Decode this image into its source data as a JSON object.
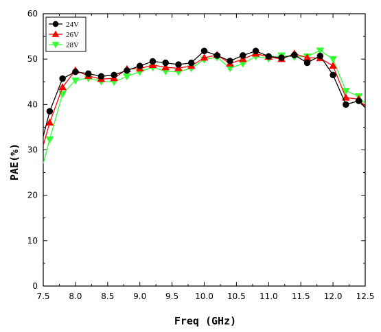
{
  "chart_data": {
    "type": "line",
    "xlabel": "Freq (GHz)",
    "ylabel": "PAE(%)",
    "xlim": [
      7.5,
      12.5
    ],
    "ylim": [
      0,
      60
    ],
    "x_ticks": [
      7.5,
      8.0,
      8.5,
      9.0,
      9.5,
      10.0,
      10.5,
      11.0,
      11.5,
      12.0,
      12.5
    ],
    "x_tick_labels": [
      "7.5",
      "8.0",
      "8.5",
      "9.0",
      "9.5",
      "10.0",
      "10.5",
      "11.0",
      "11.5",
      "12.0",
      "12.5"
    ],
    "y_ticks": [
      0,
      10,
      20,
      30,
      40,
      50,
      60
    ],
    "y_tick_labels": [
      "0",
      "10",
      "20",
      "30",
      "40",
      "50",
      "60"
    ],
    "grid": false,
    "legend_position": "top-left",
    "x": [
      7.5,
      7.6,
      7.8,
      8.0,
      8.2,
      8.4,
      8.6,
      8.8,
      9.0,
      9.2,
      9.4,
      9.6,
      9.8,
      10.0,
      10.2,
      10.4,
      10.6,
      10.8,
      11.0,
      11.2,
      11.4,
      11.6,
      11.8,
      12.0,
      12.2,
      12.4,
      12.5
    ],
    "series": [
      {
        "name": "24V",
        "marker": "circle",
        "color": "#000000",
        "values": [
          33,
          38.5,
          45.7,
          47.2,
          46.8,
          46.2,
          46.5,
          47.5,
          48.5,
          49.5,
          49.2,
          48.8,
          49.2,
          51.8,
          50.8,
          49.6,
          50.8,
          51.8,
          50.6,
          50.3,
          50.9,
          49.2,
          50.7,
          46.5,
          40,
          40.8,
          39.3
        ]
      },
      {
        "name": "26V",
        "marker": "triangle-up",
        "color": "#ff0000",
        "values": [
          31,
          36,
          43.8,
          47.5,
          46.3,
          45.6,
          45.8,
          47.8,
          47.9,
          48.7,
          48.2,
          48,
          48.5,
          50.3,
          50.9,
          49,
          50,
          51.2,
          50.5,
          50,
          51.2,
          50.3,
          50.2,
          48.5,
          41.5,
          41.2,
          39.6
        ]
      },
      {
        "name": "28V",
        "marker": "triangle-down",
        "color": "#33ff33",
        "values": [
          27,
          32.3,
          42.3,
          45.3,
          45.8,
          45.1,
          45,
          46.2,
          47.2,
          48.2,
          47.3,
          47.2,
          48,
          49.9,
          50.4,
          48,
          49,
          50.6,
          50.1,
          50.8,
          50.5,
          50.6,
          51.9,
          50,
          43,
          41.8,
          40.2
        ]
      }
    ]
  }
}
